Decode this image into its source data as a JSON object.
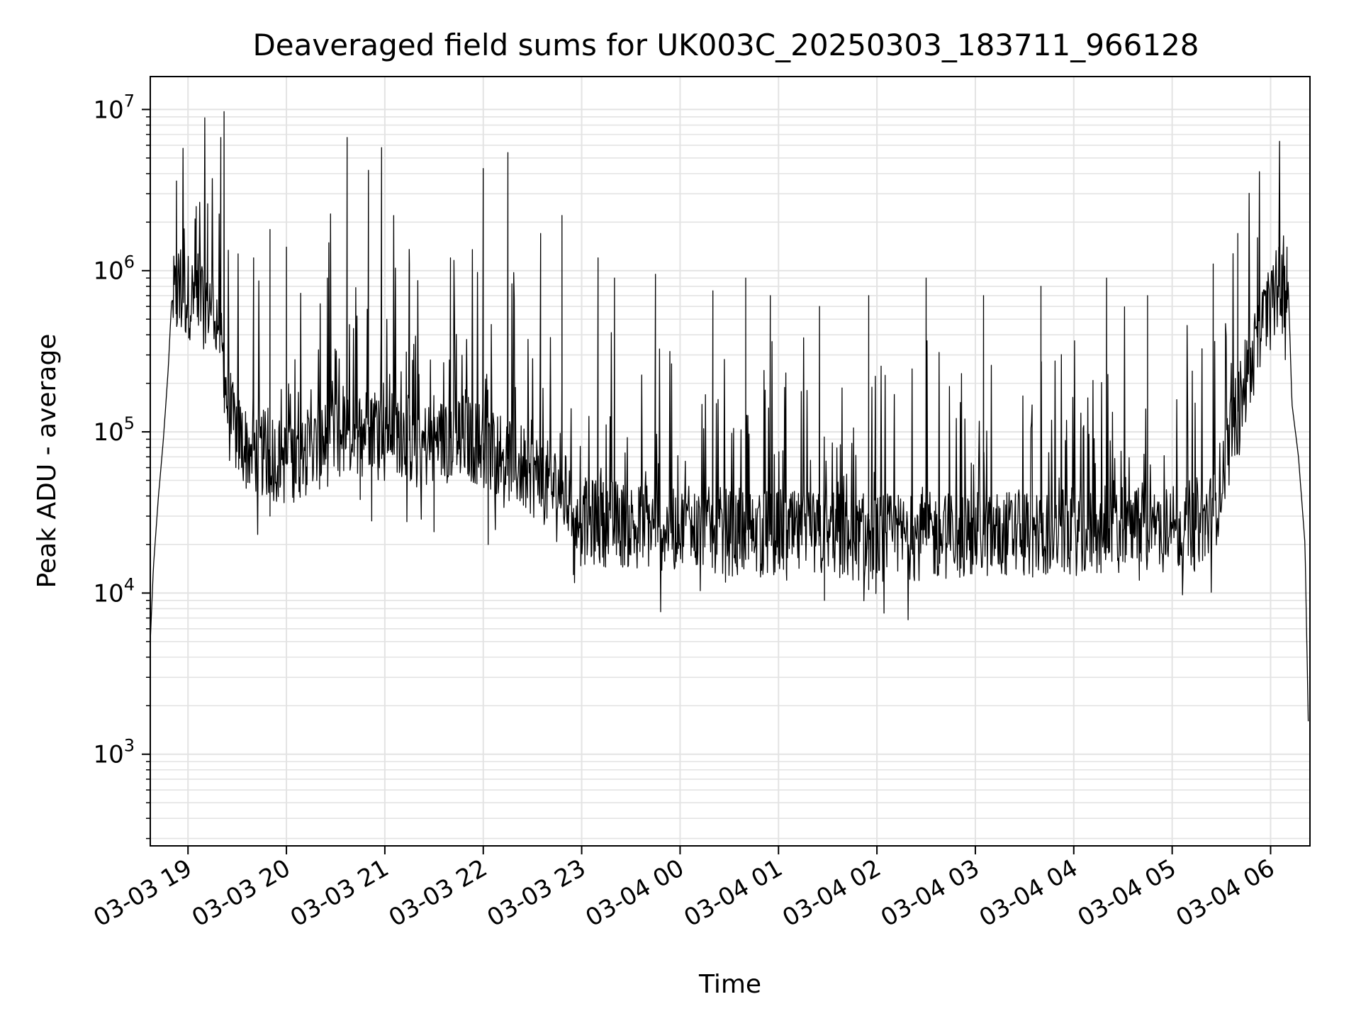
{
  "chart_data": {
    "type": "line",
    "title": "Deaveraged field sums for UK003C_20250303_183711_966128",
    "xlabel": "Time",
    "ylabel": "Peak ADU - average",
    "yscale": "log",
    "ylim": [
      270,
      16000000
    ],
    "xlim": [
      "2025-03-03 18:37",
      "2025-03-04 06:24"
    ],
    "grid": true,
    "x_ticks": [
      {
        "t": "2025-03-03 19:00",
        "label": "03-03 19"
      },
      {
        "t": "2025-03-03 20:00",
        "label": "03-03 20"
      },
      {
        "t": "2025-03-03 21:00",
        "label": "03-03 21"
      },
      {
        "t": "2025-03-03 22:00",
        "label": "03-03 22"
      },
      {
        "t": "2025-03-03 23:00",
        "label": "03-03 23"
      },
      {
        "t": "2025-03-04 00:00",
        "label": "03-04 00"
      },
      {
        "t": "2025-03-04 01:00",
        "label": "03-04 01"
      },
      {
        "t": "2025-03-04 02:00",
        "label": "03-04 02"
      },
      {
        "t": "2025-03-04 03:00",
        "label": "03-04 03"
      },
      {
        "t": "2025-03-04 04:00",
        "label": "03-04 04"
      },
      {
        "t": "2025-03-04 05:00",
        "label": "03-04 05"
      },
      {
        "t": "2025-03-04 06:00",
        "label": "03-04 06"
      }
    ],
    "y_ticks": [
      {
        "v": 1000,
        "base": "10",
        "exp": "3"
      },
      {
        "v": 10000,
        "base": "10",
        "exp": "4"
      },
      {
        "v": 100000,
        "base": "10",
        "exp": "5"
      },
      {
        "v": 1000000,
        "base": "10",
        "exp": "6"
      },
      {
        "v": 10000000,
        "base": "10",
        "exp": "7"
      }
    ],
    "series": [
      {
        "color": "#000000",
        "baseline": [
          [
            "2025-03-03 18:37",
            5000
          ],
          [
            "2025-03-03 18:39",
            15000
          ],
          [
            "2025-03-03 18:42",
            40000
          ],
          [
            "2025-03-03 18:45",
            90000
          ],
          [
            "2025-03-03 18:48",
            250000
          ],
          [
            "2025-03-03 18:50",
            650000
          ],
          [
            "2025-03-03 19:00",
            700000
          ],
          [
            "2025-03-03 19:15",
            650000
          ],
          [
            "2025-03-03 19:20",
            400000
          ],
          [
            "2025-03-03 19:25",
            120000
          ],
          [
            "2025-03-03 19:35",
            80000
          ],
          [
            "2025-03-03 20:00",
            65000
          ],
          [
            "2025-03-03 20:30",
            90000
          ],
          [
            "2025-03-03 21:00",
            120000
          ],
          [
            "2025-03-03 21:20",
            80000
          ],
          [
            "2025-03-03 21:45",
            95000
          ],
          [
            "2025-03-03 22:00",
            85000
          ],
          [
            "2025-03-03 22:30",
            55000
          ],
          [
            "2025-03-03 22:50",
            40000
          ],
          [
            "2025-03-03 23:00",
            28000
          ],
          [
            "2025-03-04 00:00",
            25000
          ],
          [
            "2025-03-04 01:00",
            23000
          ],
          [
            "2025-03-04 02:00",
            22000
          ],
          [
            "2025-03-04 03:00",
            23000
          ],
          [
            "2025-03-04 04:00",
            24000
          ],
          [
            "2025-03-04 05:00",
            25000
          ],
          [
            "2025-03-04 05:25",
            30000
          ],
          [
            "2025-03-04 05:35",
            90000
          ],
          [
            "2025-03-04 05:45",
            200000
          ],
          [
            "2025-03-04 05:55",
            450000
          ],
          [
            "2025-03-04 06:05",
            800000
          ],
          [
            "2025-03-04 06:11",
            700000
          ],
          [
            "2025-03-04 06:13",
            150000
          ],
          [
            "2025-03-04 06:17",
            70000
          ],
          [
            "2025-03-04 06:21",
            20000
          ],
          [
            "2025-03-04 06:23",
            1500
          ]
        ],
        "spikes": [
          [
            "2025-03-03 18:53",
            3600000
          ],
          [
            "2025-03-03 19:05",
            2500000
          ],
          [
            "2025-03-03 19:12",
            2600000
          ],
          [
            "2025-03-03 19:20",
            6700000
          ],
          [
            "2025-03-03 19:22",
            9700000
          ],
          [
            "2025-03-03 19:40",
            1200000
          ],
          [
            "2025-03-03 19:50",
            1800000
          ],
          [
            "2025-03-03 20:00",
            1400000
          ],
          [
            "2025-03-03 20:25",
            900000
          ],
          [
            "2025-03-03 20:37",
            6700000
          ],
          [
            "2025-03-03 20:50",
            4200000
          ],
          [
            "2025-03-03 20:58",
            5800000
          ],
          [
            "2025-03-03 21:15",
            1100000
          ],
          [
            "2025-03-03 21:40",
            1200000
          ],
          [
            "2025-03-03 22:00",
            4300000
          ],
          [
            "2025-03-03 22:15",
            5400000
          ],
          [
            "2025-03-03 22:35",
            1700000
          ],
          [
            "2025-03-03 22:48",
            2200000
          ],
          [
            "2025-03-03 23:10",
            1200000
          ],
          [
            "2025-03-03 23:20",
            900000
          ],
          [
            "2025-03-03 23:45",
            950000
          ],
          [
            "2025-03-04 00:20",
            750000
          ],
          [
            "2025-03-04 00:40",
            900000
          ],
          [
            "2025-03-04 00:55",
            700000
          ],
          [
            "2025-03-04 01:25",
            600000
          ],
          [
            "2025-03-04 01:55",
            700000
          ],
          [
            "2025-03-04 02:30",
            900000
          ],
          [
            "2025-03-04 03:05",
            700000
          ],
          [
            "2025-03-04 03:40",
            800000
          ],
          [
            "2025-03-04 04:20",
            900000
          ],
          [
            "2025-03-04 04:45",
            700000
          ],
          [
            "2025-03-04 05:25",
            1100000
          ],
          [
            "2025-03-04 05:40",
            1700000
          ],
          [
            "2025-03-04 05:52",
            1600000
          ],
          [
            "2025-03-04 06:05",
            1400000
          ],
          [
            "2025-03-04 06:10",
            1400000
          ]
        ],
        "dips": [
          [
            "2025-03-03 19:50",
            30000
          ],
          [
            "2025-03-03 20:45",
            38000
          ],
          [
            "2025-03-03 20:52",
            28000
          ],
          [
            "2025-03-03 21:30",
            24000
          ],
          [
            "2025-03-03 22:03",
            20000
          ],
          [
            "2025-03-03 22:55",
            13000
          ],
          [
            "2025-03-04 00:35",
            13000
          ],
          [
            "2025-03-04 01:05",
            12000
          ],
          [
            "2025-03-04 01:28",
            9000
          ],
          [
            "2025-03-04 01:55",
            10500
          ],
          [
            "2025-03-04 04:40",
            12000
          ],
          [
            "2025-03-04 05:20",
            17000
          ]
        ]
      }
    ]
  }
}
